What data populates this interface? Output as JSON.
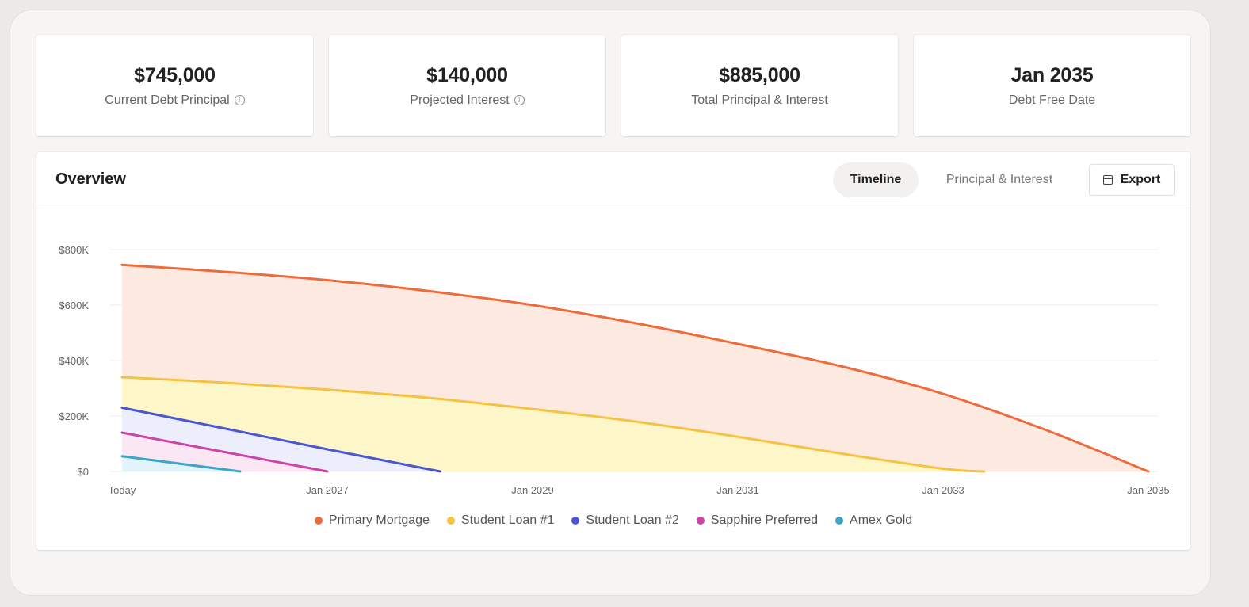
{
  "stats": [
    {
      "value": "$745,000",
      "label": "Current Debt Principal",
      "info": true
    },
    {
      "value": "$140,000",
      "label": "Projected Interest",
      "info": true
    },
    {
      "value": "$885,000",
      "label": "Total Principal & Interest",
      "info": false
    },
    {
      "value": "Jan 2035",
      "label": "Debt Free Date",
      "info": false
    }
  ],
  "overview": {
    "title": "Overview",
    "tabs": [
      {
        "label": "Timeline",
        "active": true
      },
      {
        "label": "Principal & Interest",
        "active": false
      }
    ],
    "export_label": "Export",
    "export_icon": "calendar-icon"
  },
  "chart_data": {
    "type": "area",
    "title": "",
    "xlabel": "",
    "ylabel": "",
    "x_ticks": [
      "Today",
      "Jan 2027",
      "Jan 2029",
      "Jan 2031",
      "Jan 2033",
      "Jan 2035"
    ],
    "x_tick_years": [
      2025,
      2027,
      2029,
      2031,
      2033,
      2035
    ],
    "y_ticks": [
      "$0",
      "$200K",
      "$400K",
      "$600K",
      "$800K"
    ],
    "y_tick_values": [
      0,
      200000,
      400000,
      600000,
      800000
    ],
    "xlim": [
      2025,
      2035
    ],
    "ylim": [
      0,
      800000
    ],
    "grid": true,
    "legend_position": "bottom-center",
    "series": [
      {
        "name": "Primary Mortgage",
        "color": "#ee6c3c",
        "fill": "#fce9e0",
        "x": [
          2025,
          2026,
          2027,
          2028,
          2029,
          2030,
          2031,
          2032,
          2033,
          2034,
          2035
        ],
        "values": [
          745000,
          720000,
          690000,
          650000,
          600000,
          535000,
          460000,
          380000,
          280000,
          150000,
          0
        ]
      },
      {
        "name": "Student Loan #1",
        "color": "#f5c242",
        "fill": "#fdf6c8",
        "x": [
          2025,
          2026,
          2027,
          2028,
          2029,
          2030,
          2031,
          2032,
          2033,
          2033.4
        ],
        "values": [
          340000,
          320000,
          295000,
          265000,
          225000,
          180000,
          125000,
          65000,
          10000,
          0
        ]
      },
      {
        "name": "Student Loan #2",
        "color": "#4b55d8",
        "fill": "#eceefc",
        "x": [
          2025,
          2026,
          2027,
          2028.1
        ],
        "values": [
          230000,
          155000,
          80000,
          0
        ]
      },
      {
        "name": "Sapphire Preferred",
        "color": "#cc44a8",
        "fill": "#fbe6f3",
        "x": [
          2025,
          2026,
          2027
        ],
        "values": [
          140000,
          70000,
          0
        ]
      },
      {
        "name": "Amex Gold",
        "color": "#3aa6c8",
        "fill": "#e2f4f9",
        "x": [
          2025,
          2026.15
        ],
        "values": [
          55000,
          0
        ]
      }
    ]
  }
}
